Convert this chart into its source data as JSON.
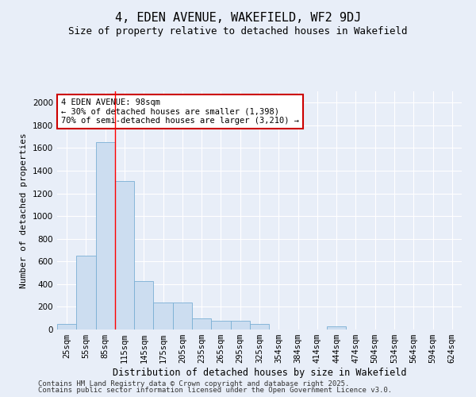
{
  "title1": "4, EDEN AVENUE, WAKEFIELD, WF2 9DJ",
  "title2": "Size of property relative to detached houses in Wakefield",
  "xlabel": "Distribution of detached houses by size in Wakefield",
  "ylabel": "Number of detached properties",
  "categories": [
    "25sqm",
    "55sqm",
    "85sqm",
    "115sqm",
    "145sqm",
    "175sqm",
    "205sqm",
    "235sqm",
    "265sqm",
    "295sqm",
    "325sqm",
    "354sqm",
    "384sqm",
    "414sqm",
    "444sqm",
    "474sqm",
    "504sqm",
    "534sqm",
    "564sqm",
    "594sqm",
    "624sqm"
  ],
  "values": [
    50,
    650,
    1650,
    1310,
    430,
    240,
    240,
    100,
    80,
    80,
    50,
    0,
    0,
    0,
    30,
    0,
    0,
    0,
    0,
    0,
    0
  ],
  "bar_color": "#ccddf0",
  "bar_edge_color": "#7aafd4",
  "red_line_x": 2.5,
  "annotation_text": "4 EDEN AVENUE: 98sqm\n← 30% of detached houses are smaller (1,398)\n70% of semi-detached houses are larger (3,210) →",
  "annotation_box_color": "#ffffff",
  "annotation_box_edge": "#cc0000",
  "ylim": [
    0,
    2100
  ],
  "yticks": [
    0,
    200,
    400,
    600,
    800,
    1000,
    1200,
    1400,
    1600,
    1800,
    2000
  ],
  "footer1": "Contains HM Land Registry data © Crown copyright and database right 2025.",
  "footer2": "Contains public sector information licensed under the Open Government Licence v3.0.",
  "background_color": "#e8eef8",
  "grid_color": "#ffffff",
  "title1_fontsize": 11,
  "title2_fontsize": 9,
  "xlabel_fontsize": 8.5,
  "ylabel_fontsize": 8,
  "tick_fontsize": 7.5,
  "footer_fontsize": 6.5,
  "annot_fontsize": 7.5
}
